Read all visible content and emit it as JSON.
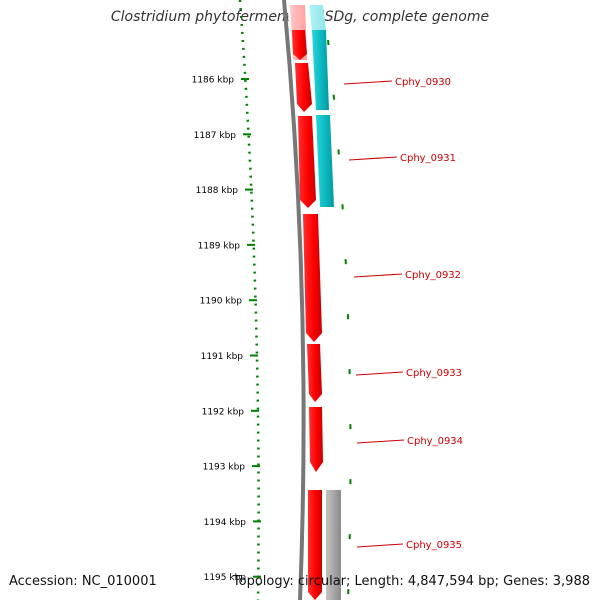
{
  "title": "Clostridium phytofermentans ISDg, complete genome",
  "footer": {
    "accession": "Accession: NC_010001",
    "summary": "Topology: circular; Length: 4,847,594 bp; Genes: 3,988"
  },
  "colors": {
    "forward_cds": "#ff0000",
    "forward_cds_highlight": "#ffaaaa",
    "reverse_feature": "#00b8c0",
    "other_feature": "#9a9a9a",
    "backbone": "#777777",
    "ruler_ticks": "#008000",
    "gene_labels": "#cc0000"
  },
  "ruler": {
    "labels": [
      "1186 kbp",
      "1187 kbp",
      "1188 kbp",
      "1189 kbp",
      "1190 kbp",
      "1191 kbp",
      "1192 kbp",
      "1193 kbp",
      "1194 kbp",
      "1195 kbp"
    ]
  },
  "genes": [
    {
      "label": "Cphy_0930"
    },
    {
      "label": "Cphy_0931"
    },
    {
      "label": "Cphy_0932"
    },
    {
      "label": "Cphy_0933"
    },
    {
      "label": "Cphy_0934"
    },
    {
      "label": "Cphy_0935"
    }
  ]
}
